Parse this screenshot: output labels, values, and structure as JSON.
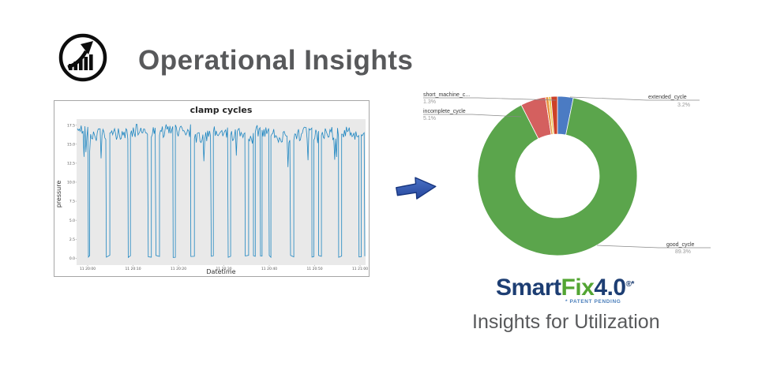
{
  "header": {
    "title": "Operational Insights",
    "icon": "growth-chart-icon"
  },
  "arrow": {
    "direction": "right",
    "fill": "#2e55ab",
    "stroke": "#17357e"
  },
  "logo": {
    "smart": "Smart",
    "fix": "Fix",
    "version": "4.0",
    "marks": "®*",
    "patent_note": "* PATENT PENDING",
    "navy": "#1d3e73",
    "green": "#53a533"
  },
  "caption": "Insights for Utilization",
  "chart_data": [
    {
      "type": "line",
      "title": "clamp cycles",
      "xlabel": "Datetime",
      "ylabel": "pressure",
      "ylim": [
        -0.9,
        18.3
      ],
      "y_ticks": [
        "17.5",
        "15.0",
        "12.5",
        "10.0",
        "7.5",
        "5.0",
        "2.5",
        "0.0"
      ],
      "x_ticks": [
        "11 20:00",
        "11 20:10",
        "11 20:20",
        "11 20:30",
        "11 20:40",
        "11 20:50",
        "11 21:00"
      ],
      "line_color": "#1e86c1",
      "plot_bg": "#e9e9e9",
      "grid": false,
      "legend": "none",
      "series_description": "Square-wave clamp pressure signal: plateaus near 16-17.5 with frequent narrow drops to ~0 and occasional longer idle periods at ~0",
      "signal": {
        "high_level": 16.4,
        "high_noise": 1.4,
        "low_level": 0.3,
        "seed": 42
      }
    },
    {
      "type": "pie",
      "subtype": "donut",
      "hole": 0.52,
      "start": "12 o'clock, clockwise",
      "legend": "none",
      "slices": [
        {
          "label": "extended_cycle",
          "value": 3.2,
          "color": "#4b7bc3"
        },
        {
          "label": "good_cycle",
          "value": 89.3,
          "color": "#5ba54c"
        },
        {
          "label": "incomplete_cycle",
          "value": 5.1,
          "color": "#d4605f"
        },
        {
          "label": "small_slice_orange",
          "value": 0.6,
          "color": "#e8913c"
        },
        {
          "label": "small_slice_yellow",
          "value": 0.5,
          "color": "#e9c84c"
        },
        {
          "label": "short_machine_cycle",
          "value": 1.3,
          "color": "#cc4128"
        }
      ],
      "callouts": {
        "short_machine": {
          "text": "short_machine_c...",
          "pct": "1.3%"
        },
        "incomplete": {
          "text": "incomplete_cycle",
          "pct": "5.1%"
        },
        "extended": {
          "text": "extended_cycle",
          "pct": "3.2%"
        },
        "good": {
          "text": "good_cycle",
          "pct": "89.3%"
        }
      }
    }
  ]
}
